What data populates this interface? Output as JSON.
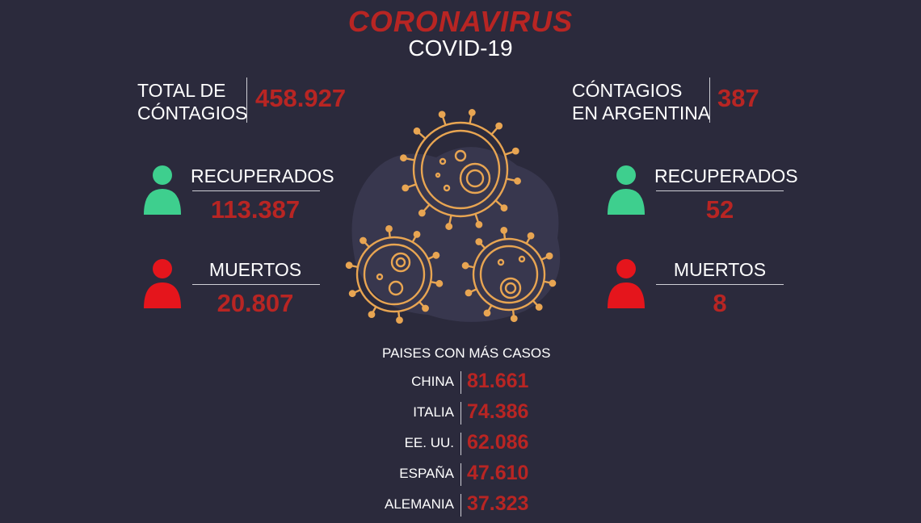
{
  "header": {
    "title": "CORONAVIRUS",
    "subtitle": "COVID-19"
  },
  "world": {
    "total_label_1": "TOTAL DE",
    "total_label_2": "CÓNTAGIOS",
    "total_value": "458.927",
    "recovered_label": "RECUPERADOS",
    "recovered_value": "113.387",
    "deaths_label": "MUERTOS",
    "deaths_value": "20.807"
  },
  "argentina": {
    "total_label_1": "CÓNTAGIOS",
    "total_label_2": "EN ARGENTINA",
    "total_value": "387",
    "recovered_label": "RECUPERADOS",
    "recovered_value": "52",
    "deaths_label": "MUERTOS",
    "deaths_value": "8"
  },
  "countries": {
    "heading": "PAISES CON MÁS CASOS",
    "list": [
      {
        "name": "CHINA",
        "value": "81.661"
      },
      {
        "name": "ITALIA",
        "value": "74.386"
      },
      {
        "name": "EE. UU.",
        "value": "62.086"
      },
      {
        "name": "ESPAÑA",
        "value": "47.610"
      },
      {
        "name": "ALEMANIA",
        "value": "37.323"
      }
    ]
  },
  "colors": {
    "background": "#2b2a3c",
    "accent_red": "#b82523",
    "recovered_green": "#3ecf8e",
    "deaths_red": "#e5151c",
    "virus_orange": "#e8a552"
  },
  "icons": {
    "recovered": "person-icon",
    "deaths": "person-icon",
    "virus": "virus-icon"
  }
}
